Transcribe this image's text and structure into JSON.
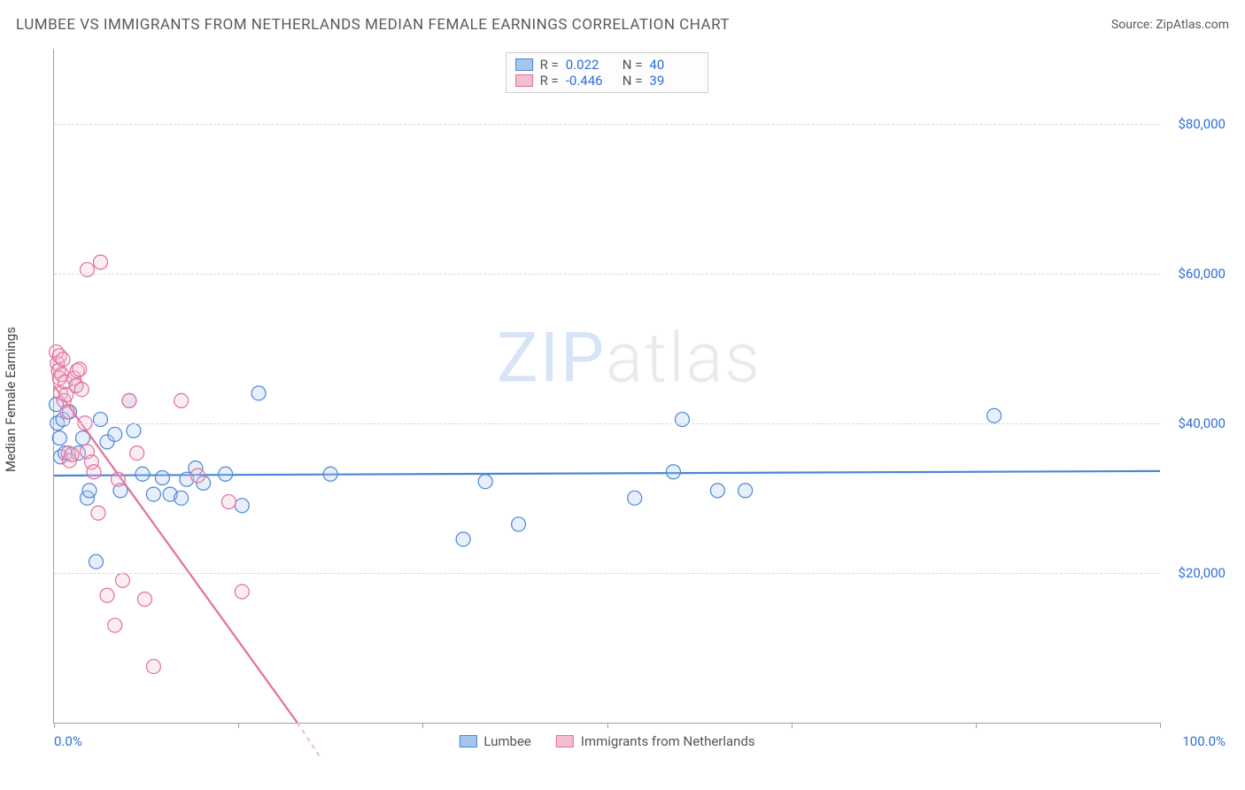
{
  "header": {
    "title": "LUMBEE VS IMMIGRANTS FROM NETHERLANDS MEDIAN FEMALE EARNINGS CORRELATION CHART",
    "source_prefix": "Source: ",
    "source_name": "ZipAtlas.com"
  },
  "watermark": {
    "part1": "ZIP",
    "part2": "atlas"
  },
  "chart": {
    "type": "scatter",
    "y_axis_label": "Median Female Earnings",
    "background_color": "#ffffff",
    "grid_color": "#d8d8d8",
    "axis_line_color": "#a0a0a0",
    "x_range": [
      0,
      100
    ],
    "y_range": [
      0,
      90000
    ],
    "x_ticks": [
      0,
      16.67,
      33.33,
      50,
      66.67,
      83.33,
      100
    ],
    "x_tick_labels": {
      "0": "0.0%",
      "100": "100.0%"
    },
    "y_gridlines": [
      20000,
      40000,
      60000,
      80000
    ],
    "y_tick_labels": {
      "20000": "$20,000",
      "40000": "$40,000",
      "60000": "$60,000",
      "80000": "$80,000"
    },
    "marker_radius": 8,
    "marker_stroke_width": 1.2,
    "marker_fill_opacity": 0.28,
    "trend_line_width": 2.2,
    "series": [
      {
        "key": "lumbee",
        "label": "Lumbee",
        "color_stroke": "#4b86d8",
        "color_fill": "#a6c5ed",
        "R": "0.022",
        "N": "40",
        "trend": {
          "x1": 0,
          "y1": 33000,
          "x2": 100,
          "y2": 33600
        },
        "points": [
          [
            0.2,
            42500
          ],
          [
            0.3,
            40000
          ],
          [
            0.5,
            38000
          ],
          [
            0.6,
            35500
          ],
          [
            0.8,
            40500
          ],
          [
            1.0,
            36000
          ],
          [
            1.4,
            41500
          ],
          [
            2.0,
            45000
          ],
          [
            2.2,
            36000
          ],
          [
            2.6,
            38000
          ],
          [
            3.0,
            30000
          ],
          [
            3.2,
            31000
          ],
          [
            3.8,
            21500
          ],
          [
            4.2,
            40500
          ],
          [
            4.8,
            37500
          ],
          [
            5.5,
            38500
          ],
          [
            6.0,
            31000
          ],
          [
            6.8,
            43000
          ],
          [
            7.2,
            39000
          ],
          [
            8.0,
            33200
          ],
          [
            9.0,
            30500
          ],
          [
            9.8,
            32700
          ],
          [
            10.5,
            30500
          ],
          [
            11.5,
            30000
          ],
          [
            12.0,
            32500
          ],
          [
            12.8,
            34000
          ],
          [
            13.5,
            32000
          ],
          [
            15.5,
            33200
          ],
          [
            17.0,
            29000
          ],
          [
            18.5,
            44000
          ],
          [
            25.0,
            33200
          ],
          [
            37.0,
            24500
          ],
          [
            39.0,
            32200
          ],
          [
            42.0,
            26500
          ],
          [
            52.5,
            30000
          ],
          [
            56.0,
            33500
          ],
          [
            56.8,
            40500
          ],
          [
            60.0,
            31000
          ],
          [
            62.5,
            31000
          ],
          [
            85.0,
            41000
          ]
        ]
      },
      {
        "key": "netherlands",
        "label": "Immigrants from Netherlands",
        "color_stroke": "#e36f9d",
        "color_fill": "#f3bdd2",
        "R": "-0.446",
        "N": "39",
        "trend": {
          "x1": 0,
          "y1": 45000,
          "x2": 22,
          "y2": 0
        },
        "trend_dashed_extension": {
          "x1": 22,
          "y1": 0,
          "x2": 24,
          "y2": -4500
        },
        "points": [
          [
            0.2,
            49500
          ],
          [
            0.3,
            48000
          ],
          [
            0.4,
            47000
          ],
          [
            0.5,
            46000
          ],
          [
            0.5,
            49000
          ],
          [
            0.6,
            44000
          ],
          [
            0.7,
            46500
          ],
          [
            0.8,
            48500
          ],
          [
            0.9,
            43000
          ],
          [
            1.0,
            45500
          ],
          [
            1.1,
            43800
          ],
          [
            1.2,
            41500
          ],
          [
            1.3,
            36000
          ],
          [
            1.4,
            35000
          ],
          [
            1.6,
            35800
          ],
          [
            1.8,
            46000
          ],
          [
            2.0,
            45000
          ],
          [
            2.1,
            47000
          ],
          [
            2.3,
            47200
          ],
          [
            2.5,
            44500
          ],
          [
            2.8,
            40000
          ],
          [
            3.0,
            36200
          ],
          [
            3.0,
            60500
          ],
          [
            3.4,
            34800
          ],
          [
            3.6,
            33500
          ],
          [
            4.0,
            28000
          ],
          [
            4.2,
            61500
          ],
          [
            4.8,
            17000
          ],
          [
            5.5,
            13000
          ],
          [
            5.8,
            32500
          ],
          [
            6.2,
            19000
          ],
          [
            6.8,
            43000
          ],
          [
            7.5,
            36000
          ],
          [
            8.2,
            16500
          ],
          [
            9.0,
            7500
          ],
          [
            11.5,
            43000
          ],
          [
            13.0,
            33000
          ],
          [
            15.8,
            29500
          ],
          [
            17.0,
            17500
          ]
        ]
      }
    ],
    "legend_top": {
      "R_label": "R =",
      "N_label": "N ="
    }
  }
}
